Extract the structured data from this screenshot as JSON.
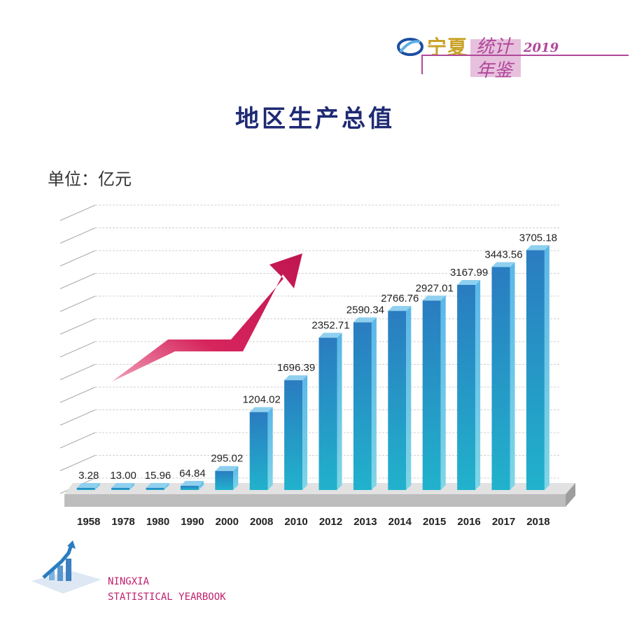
{
  "header": {
    "title_part1": "宁夏",
    "title_part2": "统计",
    "title_part3": "年鉴",
    "year": "2019"
  },
  "footer": {
    "line1": "NINGXIA",
    "line2": "STATISTICAL YEARBOOK"
  },
  "chart_data": {
    "type": "bar",
    "title": "地区生产总值",
    "unit_label": "单位：亿元",
    "categories": [
      "1958",
      "1978",
      "1980",
      "1990",
      "2000",
      "2008",
      "2010",
      "2012",
      "2013",
      "2014",
      "2015",
      "2016",
      "2017",
      "2018"
    ],
    "values": [
      3.28,
      13.0,
      15.96,
      64.84,
      295.02,
      1204.02,
      1696.39,
      2352.71,
      2590.34,
      2766.76,
      2927.01,
      3167.99,
      3443.56,
      3705.18
    ],
    "value_labels": [
      "3.28",
      "13.00",
      "15.96",
      "64.84",
      "295.02",
      "1204.02",
      "1696.39",
      "2352.71",
      "2590.34",
      "2766.76",
      "2927.01",
      "3167.99",
      "3443.56",
      "3705.18"
    ],
    "ylim": [
      0,
      4000
    ],
    "grid": true,
    "colors": {
      "bar_top": "#2a7fc1",
      "bar_bottom": "#22b3cc",
      "arrow": "#d6245d",
      "base": "#d4d4d4"
    }
  }
}
